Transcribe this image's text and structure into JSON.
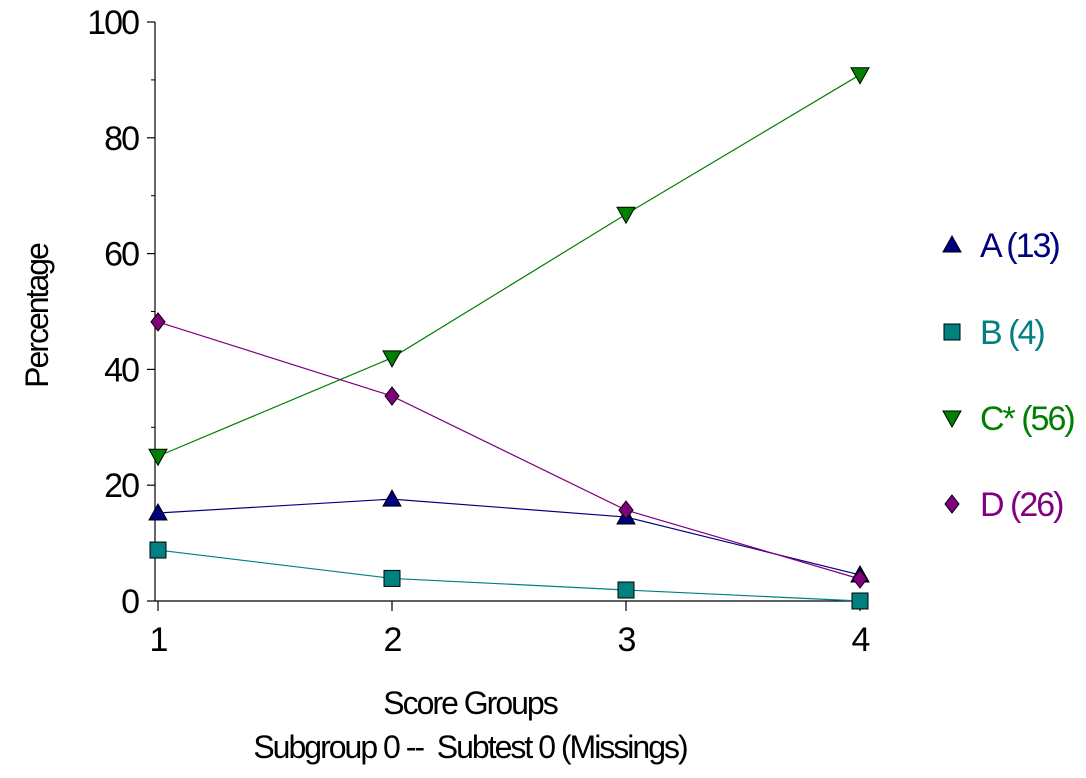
{
  "chart_data": {
    "type": "line",
    "x": [
      1,
      2,
      3,
      4
    ],
    "xlabel": "Score Groups",
    "subtitle": "Subgroup 0 --  Subtest 0 (Missings)",
    "ylabel": "Percentage",
    "ylim": [
      0,
      100
    ],
    "xlim": [
      1,
      4
    ],
    "yticks": [
      0,
      20,
      40,
      60,
      80,
      100
    ],
    "xticks": [
      1,
      2,
      3,
      4
    ],
    "grid": false,
    "legend_position": "right",
    "series": [
      {
        "name": "A (13)",
        "values": [
          15.2,
          17.6,
          14.5,
          4.5
        ],
        "color": "#000080",
        "marker": "triangle-up"
      },
      {
        "name": "B (4)",
        "values": [
          8.8,
          3.9,
          1.9,
          0.0
        ],
        "color": "#008080",
        "marker": "square"
      },
      {
        "name": "C* (56)",
        "values": [
          25.0,
          42.0,
          66.8,
          90.9
        ],
        "color": "#008000",
        "marker": "triangle-down"
      },
      {
        "name": "D (26)",
        "values": [
          48.2,
          35.4,
          15.7,
          3.8
        ],
        "color": "#800080",
        "marker": "diamond"
      }
    ]
  }
}
